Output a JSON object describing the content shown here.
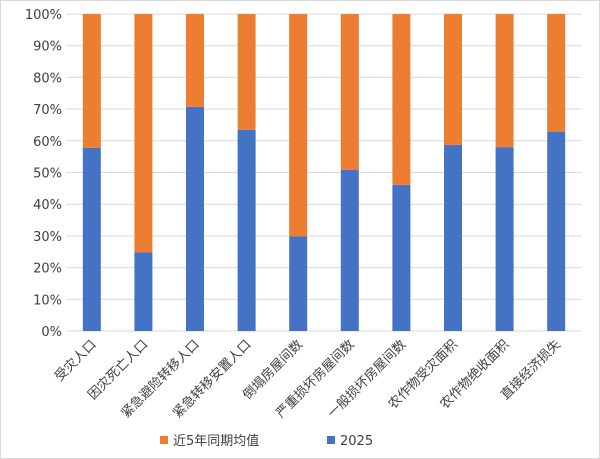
{
  "chart_data": {
    "type": "bar",
    "stacked": "percent",
    "title": "",
    "xlabel": "",
    "ylabel": "",
    "ylim": [
      0,
      100
    ],
    "yticks": [
      "0%",
      "10%",
      "20%",
      "30%",
      "40%",
      "50%",
      "60%",
      "70%",
      "80%",
      "90%",
      "100%"
    ],
    "grid": true,
    "legend_position": "bottom",
    "categories": [
      "受灾人口",
      "因灾死亡人口",
      "紧急避险转移人口",
      "紧急转移安置人口",
      "倒塌房屋间数",
      "严重损坏房屋间数",
      "一般损坏房屋间数",
      "农作物受灾面积",
      "农作物绝收面积",
      "直接经济损失"
    ],
    "series": [
      {
        "name": "2025",
        "color": "#4472c4",
        "values": [
          57.8,
          24.8,
          70.7,
          63.5,
          29.9,
          50.9,
          46.1,
          58.7,
          58.0,
          62.9
        ]
      },
      {
        "name": "近5年同期均值",
        "color": "#ed7d31",
        "values": [
          42.2,
          75.2,
          29.3,
          36.5,
          70.1,
          49.1,
          53.9,
          41.3,
          42.0,
          37.1
        ]
      }
    ],
    "legend": [
      "近5年同期均值",
      "2025"
    ]
  }
}
